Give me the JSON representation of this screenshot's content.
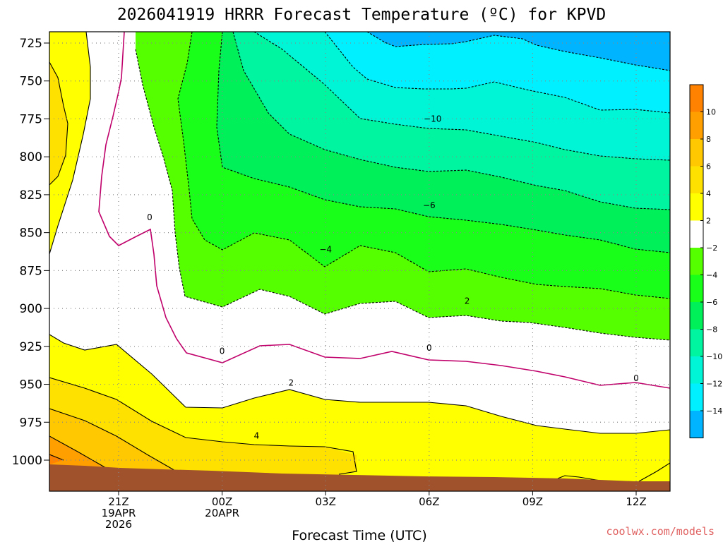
{
  "chart_data": {
    "type": "heatmap",
    "title": "2026041919 HRRR Forecast Temperature (ºC) for KPVD",
    "xlabel": "Forecast Time (UTC)",
    "ylabel": "",
    "y_ticks": [
      "725",
      "750",
      "775",
      "800",
      "825",
      "850",
      "875",
      "900",
      "925",
      "950",
      "975",
      "1000"
    ],
    "y_values": [
      725,
      750,
      775,
      800,
      825,
      850,
      875,
      900,
      925,
      950,
      975,
      1000
    ],
    "ylim": [
      1020,
      720
    ],
    "x_hours": [
      21,
      24,
      27,
      30,
      33,
      36
    ],
    "x_ticks": [
      {
        "hour": 21,
        "lines": [
          "21Z",
          "19APR",
          "2026"
        ]
      },
      {
        "hour": 24,
        "lines": [
          "00Z",
          "20APR"
        ]
      },
      {
        "hour": 27,
        "lines": [
          "03Z"
        ]
      },
      {
        "hour": 30,
        "lines": [
          "06Z"
        ]
      },
      {
        "hour": 33,
        "lines": [
          "09Z"
        ]
      },
      {
        "hour": 36,
        "lines": [
          "12Z"
        ]
      }
    ],
    "xlim": [
      19,
      37
    ],
    "grid": true,
    "colorbar": {
      "labels": [
        "10",
        "8",
        "6",
        "4",
        "2",
        "−2",
        "−4",
        "−6",
        "−8",
        "−10",
        "−12",
        "−14"
      ],
      "colors": [
        "#ff8200",
        "#ffa000",
        "#ffc800",
        "#ffe100",
        "#ffff00",
        "#ffffff",
        "#55ff00",
        "#19ff19",
        "#00f05a",
        "#00f5a0",
        "#00f5d7",
        "#00f0ff",
        "#00b4ff"
      ]
    },
    "contour_labels": [
      {
        "text": "0",
        "hour": 21.9,
        "pressure": 840
      },
      {
        "text": "0",
        "hour": 24.0,
        "pressure": 928
      },
      {
        "text": "0",
        "hour": 30.0,
        "pressure": 926
      },
      {
        "text": "0",
        "hour": 36.0,
        "pressure": 946
      },
      {
        "text": "2",
        "hour": 26.0,
        "pressure": 949
      },
      {
        "text": "2",
        "hour": 31.1,
        "pressure": 895
      },
      {
        "text": "4",
        "hour": 25.0,
        "pressure": 984
      },
      {
        "text": "−4",
        "hour": 27.0,
        "pressure": 861
      },
      {
        "text": "−6",
        "hour": 30.0,
        "pressure": 832
      },
      {
        "text": "−10",
        "hour": 30.1,
        "pressure": 775
      }
    ]
  },
  "credit": "coolwx.com/models",
  "colors": {
    "brown_ground": "#a0522d",
    "freezing_line": "#c0006b",
    "credit": "#e06060"
  }
}
